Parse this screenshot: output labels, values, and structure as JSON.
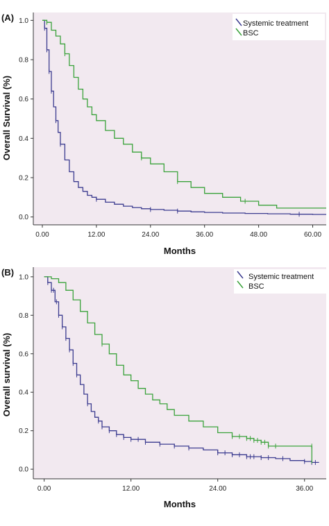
{
  "colors": {
    "plot_background": "#f2e9f0",
    "systemic": "#3b3b8f",
    "bsc": "#3aa23a",
    "axis": "#333333"
  },
  "chart_data": [
    {
      "panel_label": "(A)",
      "type": "line",
      "subtype": "kaplan-meier",
      "title": "",
      "xlabel": "Months",
      "ylabel": "Overall Survival (%)",
      "xlim": [
        -2,
        63
      ],
      "ylim": [
        -0.04,
        1.04
      ],
      "xticks": [
        "0.00",
        "12.00",
        "24.00",
        "36.00",
        "48.00",
        "60.00"
      ],
      "xtick_values": [
        0,
        12,
        24,
        36,
        48,
        60
      ],
      "yticks": [
        "0.0",
        "0.2",
        "0.4",
        "0.6",
        "0.8",
        "1.0"
      ],
      "ytick_values": [
        0,
        0.2,
        0.4,
        0.6,
        0.8,
        1.0
      ],
      "legend_position": "top-right",
      "series": [
        {
          "name": "Systemic treatment",
          "color_key": "systemic",
          "x": [
            0,
            0.5,
            1,
            1.5,
            2,
            2.5,
            3,
            3.5,
            4,
            5,
            6,
            7,
            8,
            9,
            10,
            11,
            12,
            14,
            16,
            18,
            20,
            22,
            24,
            27,
            30,
            33,
            36,
            40,
            45,
            50,
            55,
            60,
            63
          ],
          "y": [
            1.0,
            0.96,
            0.85,
            0.74,
            0.64,
            0.56,
            0.49,
            0.43,
            0.37,
            0.29,
            0.23,
            0.18,
            0.15,
            0.13,
            0.11,
            0.1,
            0.09,
            0.075,
            0.065,
            0.055,
            0.048,
            0.042,
            0.038,
            0.034,
            0.03,
            0.026,
            0.023,
            0.02,
            0.018,
            0.016,
            0.014,
            0.013,
            0.013
          ],
          "censor_x": [
            0.5,
            1,
            1.5,
            2,
            3,
            4,
            12,
            24,
            30,
            57
          ]
        },
        {
          "name": "BSC",
          "color_key": "bsc",
          "x": [
            0,
            1,
            2,
            3,
            4,
            5,
            6,
            7,
            8,
            9,
            10,
            11,
            12,
            14,
            16,
            18,
            20,
            22,
            24,
            27,
            30,
            33,
            36,
            40,
            44,
            48,
            52,
            56,
            60,
            63
          ],
          "y": [
            1.0,
            0.99,
            0.95,
            0.92,
            0.88,
            0.83,
            0.77,
            0.71,
            0.65,
            0.6,
            0.56,
            0.52,
            0.49,
            0.44,
            0.4,
            0.37,
            0.33,
            0.3,
            0.27,
            0.23,
            0.18,
            0.15,
            0.12,
            0.1,
            0.08,
            0.06,
            0.045,
            0.045,
            0.045,
            0.045
          ],
          "censor_x": [
            1,
            5,
            22,
            30,
            45
          ]
        }
      ]
    },
    {
      "panel_label": "(B)",
      "type": "line",
      "subtype": "kaplan-meier",
      "title": "",
      "xlabel": "Months",
      "ylabel": "Overall survival (%)",
      "xlim": [
        -1.5,
        39
      ],
      "ylim": [
        -0.05,
        1.05
      ],
      "xticks": [
        "0.00",
        "12.00",
        "24.00",
        "36.00"
      ],
      "xtick_values": [
        0,
        12,
        24,
        36
      ],
      "yticks": [
        "0.0",
        "0.2",
        "0.4",
        "0.6",
        "0.8",
        "1.0"
      ],
      "ytick_values": [
        0,
        0.2,
        0.4,
        0.6,
        0.8,
        1.0
      ],
      "legend_position": "top-right",
      "series": [
        {
          "name": "Systemic treatment",
          "color_key": "systemic",
          "x": [
            0,
            0.5,
            1,
            1.5,
            2,
            2.5,
            3,
            3.5,
            4,
            4.5,
            5,
            5.5,
            6,
            6.5,
            7,
            7.5,
            8,
            9,
            10,
            11,
            12,
            14,
            16,
            18,
            20,
            22,
            24,
            26,
            28,
            30,
            32,
            34,
            36,
            37,
            38
          ],
          "y": [
            1.0,
            0.97,
            0.93,
            0.87,
            0.8,
            0.74,
            0.68,
            0.62,
            0.55,
            0.49,
            0.44,
            0.39,
            0.34,
            0.3,
            0.27,
            0.25,
            0.22,
            0.2,
            0.18,
            0.165,
            0.155,
            0.14,
            0.13,
            0.12,
            0.11,
            0.1,
            0.085,
            0.075,
            0.065,
            0.06,
            0.055,
            0.045,
            0.04,
            0.035,
            0.035
          ],
          "censor_x": [
            0.5,
            1,
            1.3,
            1.7,
            2,
            2.5,
            3,
            3.5,
            4,
            4.5,
            6,
            7.5,
            8,
            9,
            10,
            11,
            12,
            13,
            14,
            16,
            18,
            20,
            24,
            25,
            26,
            27,
            28,
            28.5,
            29,
            30,
            31,
            33,
            36,
            37,
            37.5
          ]
        },
        {
          "name": "BSC",
          "color_key": "bsc",
          "x": [
            0,
            1,
            2,
            3,
            4,
            5,
            6,
            7,
            8,
            9,
            10,
            11,
            12,
            13,
            14,
            15,
            16,
            17,
            18,
            20,
            22,
            24,
            26,
            28,
            29,
            30,
            31,
            32,
            34,
            36,
            37,
            37.01
          ],
          "y": [
            1.0,
            0.99,
            0.97,
            0.93,
            0.88,
            0.82,
            0.76,
            0.7,
            0.65,
            0.6,
            0.54,
            0.49,
            0.46,
            0.42,
            0.39,
            0.36,
            0.34,
            0.31,
            0.28,
            0.25,
            0.22,
            0.19,
            0.17,
            0.16,
            0.15,
            0.14,
            0.12,
            0.12,
            0.12,
            0.12,
            0.12,
            0.03
          ],
          "censor_x": [
            8,
            26,
            27,
            28,
            28.5,
            29,
            29.5,
            30,
            30.5,
            31,
            32,
            37
          ]
        }
      ]
    }
  ]
}
